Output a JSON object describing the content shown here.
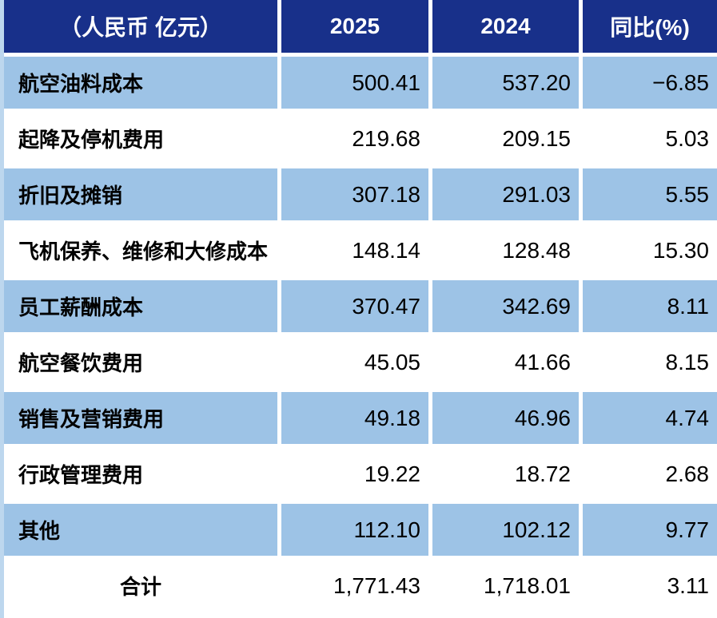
{
  "table": {
    "header": {
      "unit": "（人民币 亿元）",
      "col_2025": "2025",
      "col_2024": "2024",
      "col_yoy": "同比(%)"
    },
    "rows": [
      {
        "label": "航空油料成本",
        "v2025": "500.41",
        "v2024": "537.20",
        "yoy": "−6.85"
      },
      {
        "label": "起降及停机费用",
        "v2025": "219.68",
        "v2024": "209.15",
        "yoy": "5.03"
      },
      {
        "label": "折旧及摊销",
        "v2025": "307.18",
        "v2024": "291.03",
        "yoy": "5.55"
      },
      {
        "label": "飞机保养、维修和大修成本",
        "v2025": "148.14",
        "v2024": "128.48",
        "yoy": "15.30"
      },
      {
        "label": "员工薪酬成本",
        "v2025": "370.47",
        "v2024": "342.69",
        "yoy": "8.11"
      },
      {
        "label": "航空餐饮费用",
        "v2025": "45.05",
        "v2024": "41.66",
        "yoy": "8.15"
      },
      {
        "label": "销售及营销费用",
        "v2025": "49.18",
        "v2024": "46.96",
        "yoy": "4.74"
      },
      {
        "label": "行政管理费用",
        "v2025": "19.22",
        "v2024": "18.72",
        "yoy": "2.68"
      },
      {
        "label": "其他",
        "v2025": "112.10",
        "v2024": "102.12",
        "yoy": "9.77"
      },
      {
        "label": "合计",
        "v2025": "1,771.43",
        "v2024": "1,718.01",
        "yoy": "3.11"
      }
    ]
  },
  "colors": {
    "header_bg": "#18308A",
    "band_blue": "#9DC3E6",
    "edge_strip": "#BDD7EE",
    "header_text": "#FFFFFF",
    "body_text": "#000000",
    "gutter": "#FFFFFF"
  },
  "chart_data": {
    "type": "table",
    "title": "（人民币 亿元）",
    "columns": [
      "（人民币 亿元）",
      "2025",
      "2024",
      "同比(%)"
    ],
    "categories": [
      "航空油料成本",
      "起降及停机费用",
      "折旧及摊销",
      "飞机保养、维修和大修成本",
      "员工薪酬成本",
      "航空餐饮费用",
      "销售及营销费用",
      "行政管理费用",
      "其他",
      "合计"
    ],
    "series": [
      {
        "name": "2025",
        "values": [
          500.41,
          219.68,
          307.18,
          148.14,
          370.47,
          45.05,
          49.18,
          19.22,
          112.1,
          1771.43
        ]
      },
      {
        "name": "2024",
        "values": [
          537.2,
          209.15,
          291.03,
          128.48,
          342.69,
          41.66,
          46.96,
          18.72,
          102.12,
          1718.01
        ]
      },
      {
        "name": "同比(%)",
        "values": [
          -6.85,
          5.03,
          5.55,
          15.3,
          8.11,
          8.15,
          4.74,
          2.68,
          9.77,
          3.11
        ]
      }
    ],
    "layout": {
      "banding": "alternate-blue-white",
      "header_position": "top",
      "grid": "white-gutters"
    }
  }
}
